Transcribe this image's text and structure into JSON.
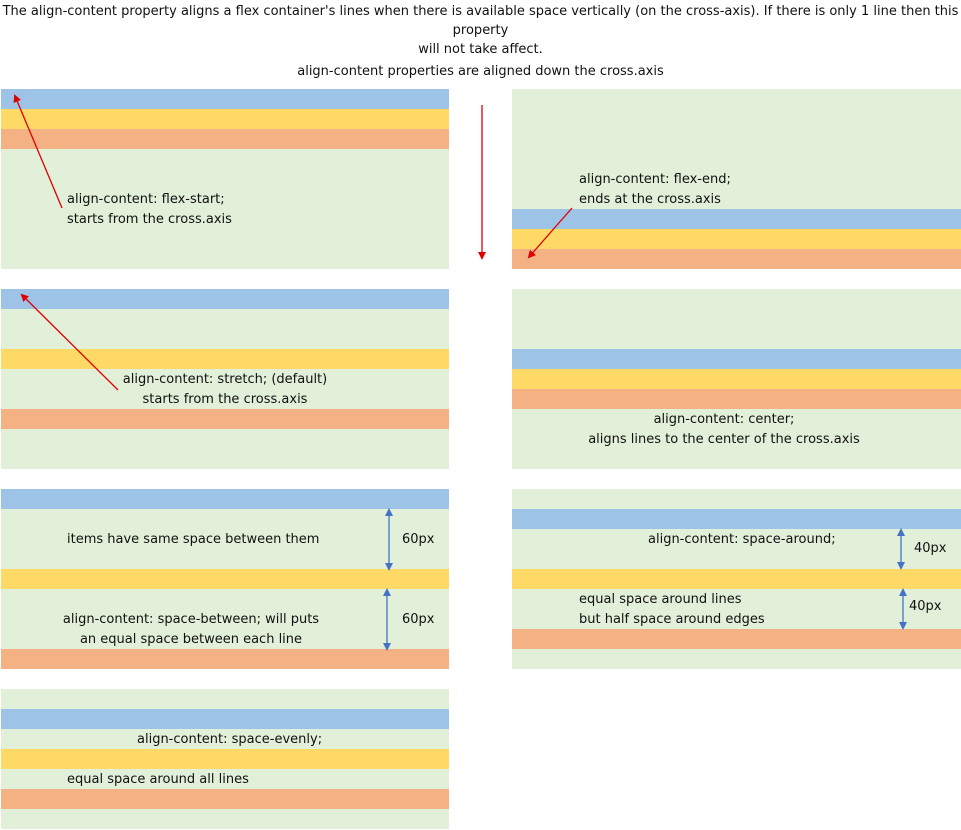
{
  "intro": {
    "line1": "The align-content property aligns a flex container's lines when there is available space vertically (on the cross-axis). If there is only 1 line then this property",
    "line2": "will not take affect."
  },
  "subtitle": "align-content properties are aligned down the cross.axis",
  "colors": {
    "panel": "#e2efd9",
    "line1": "#9dc3e6",
    "line2": "#ffd966",
    "line3": "#f4b183",
    "arrow_red": "#e00000",
    "arrow_blue": "#4472c4"
  },
  "panels": {
    "flex_start": {
      "line1": "align-content: flex-start;",
      "line2": "starts from the cross.axis"
    },
    "flex_end": {
      "line1": "align-content: flex-end;",
      "line2": "ends at the cross.axis"
    },
    "stretch": {
      "line1": "align-content: stretch; (default)",
      "line2": "starts from the cross.axis"
    },
    "center": {
      "line1": "align-content: center;",
      "line2": "aligns lines to the center of the cross.axis"
    },
    "space_between": {
      "note": "items have same space between them",
      "line1": "align-content: space-between; will puts",
      "line2": "an equal space between each line",
      "gap1": "60px",
      "gap2": "60px"
    },
    "space_around": {
      "title": "align-content: space-around;",
      "line1": "equal space around lines",
      "line2": "but half space around edges",
      "gap1": "40px",
      "gap2": "40px"
    },
    "space_evenly": {
      "title": "align-content: space-evenly;",
      "note": "equal space around all lines"
    }
  }
}
